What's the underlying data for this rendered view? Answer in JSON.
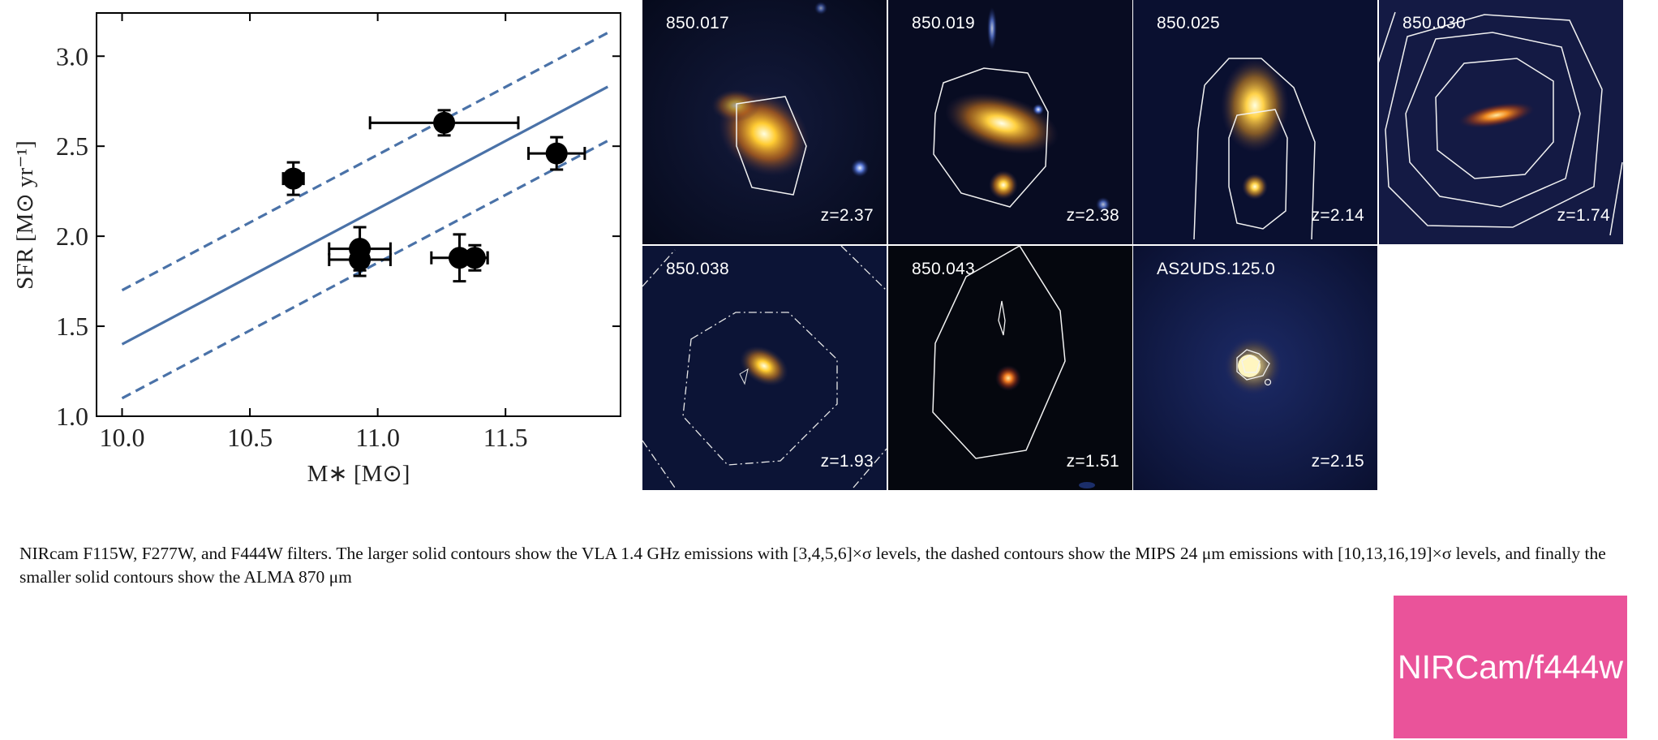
{
  "chart_data": {
    "type": "scatter",
    "xlabel": "M∗ [M⊙]",
    "ylabel": "SFR [M⊙ yr⁻¹]",
    "xlim": [
      9.9,
      11.95
    ],
    "ylim": [
      1.0,
      3.24
    ],
    "xticks": [
      "10.0",
      "10.5",
      "11.0",
      "11.5"
    ],
    "xtick_values": [
      10.0,
      10.5,
      11.0,
      11.5
    ],
    "yticks": [
      "1.0",
      "1.5",
      "2.0",
      "2.5",
      "3.0"
    ],
    "ytick_values": [
      1.0,
      1.5,
      2.0,
      2.5,
      3.0
    ],
    "grid": false,
    "lines": [
      {
        "style": "solid",
        "x": [
          10.0,
          11.9
        ],
        "y": [
          1.4,
          2.83
        ],
        "color": "#4a72a8"
      },
      {
        "style": "dashed",
        "x": [
          10.0,
          11.9
        ],
        "y": [
          1.7,
          3.13
        ],
        "color": "#4a72a8"
      },
      {
        "style": "dashed",
        "x": [
          10.0,
          11.9
        ],
        "y": [
          1.1,
          2.53
        ],
        "color": "#4a72a8"
      }
    ],
    "points": [
      {
        "x": 10.67,
        "y": 2.32,
        "xerr": 0.04,
        "yerr": 0.09
      },
      {
        "x": 11.26,
        "y": 2.63,
        "xerr": 0.29,
        "yerr": 0.07
      },
      {
        "x": 11.7,
        "y": 2.46,
        "xerr": 0.11,
        "yerr": 0.09
      },
      {
        "x": 10.93,
        "y": 1.93,
        "xerr": 0.12,
        "yerr": 0.12
      },
      {
        "x": 10.93,
        "y": 1.87,
        "xerr": 0.12,
        "yerr": 0.09
      },
      {
        "x": 11.32,
        "y": 1.88,
        "xerr": 0.11,
        "yerr": 0.13
      },
      {
        "x": 11.38,
        "y": 1.88,
        "xerr": 0.05,
        "yerr": 0.07
      }
    ]
  },
  "stamps": [
    {
      "name": "850.017",
      "z": "z=2.37"
    },
    {
      "name": "850.019",
      "z": "z=2.38"
    },
    {
      "name": "850.025",
      "z": "z=2.14"
    },
    {
      "name": "850.030",
      "z": "z=1.74"
    },
    {
      "name": "850.038",
      "z": "z=1.93"
    },
    {
      "name": "850.043",
      "z": "z=1.51"
    },
    {
      "name": "AS2UDS.125.0",
      "z": "z=2.15"
    }
  ],
  "caption": "NIRcam F115W, F277W, and F444W filters. The larger solid contours show the VLA 1.4 GHz emissions with [3,4,5,6]×σ levels, the dashed contours show the MIPS 24 μm emissions with [10,13,16,19]×σ levels, and finally the smaller solid contours show the ALMA 870 μm",
  "badge": {
    "label": "NIRCam/f444w",
    "color": "#ea539a"
  },
  "colors": {
    "line": "#4a72a8",
    "point": "#000000"
  }
}
